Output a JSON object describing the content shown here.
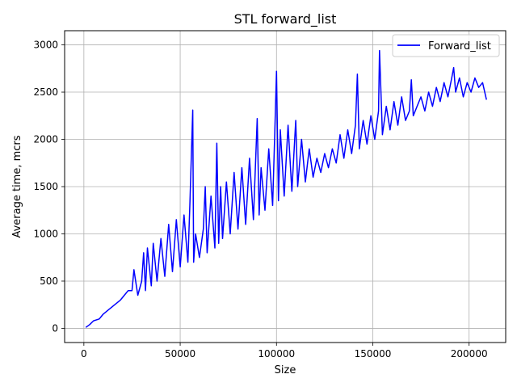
{
  "chart_data": {
    "type": "line",
    "title": "STL forward_list",
    "xlabel": "Size",
    "ylabel": "Average time, mcrs",
    "xlim": [
      -10000,
      219000
    ],
    "ylim": [
      -150,
      3150
    ],
    "xticks": [
      0,
      50000,
      100000,
      150000,
      200000
    ],
    "xtick_labels": [
      "0",
      "50000",
      "100000",
      "150000",
      "200000"
    ],
    "yticks": [
      0,
      500,
      1000,
      1500,
      2000,
      2500,
      3000
    ],
    "ytick_labels": [
      "0",
      "500",
      "1000",
      "1500",
      "2000",
      "2500",
      "3000"
    ],
    "grid": true,
    "legend_position": "top-right",
    "series": [
      {
        "name": "Forward_list",
        "color": "#0000ff",
        "x": [
          1000,
          3000,
          5000,
          8000,
          10000,
          13000,
          16000,
          19000,
          21000,
          23000,
          25000,
          26000,
          28000,
          30000,
          31000,
          32000,
          33000,
          35000,
          36000,
          38000,
          40000,
          42000,
          44000,
          46000,
          48000,
          50000,
          52000,
          54000,
          55000,
          56500,
          57000,
          58000,
          60000,
          62000,
          63000,
          64000,
          66000,
          68000,
          69000,
          70000,
          71000,
          72000,
          74000,
          76000,
          78000,
          80000,
          82000,
          84000,
          86000,
          88000,
          90000,
          91000,
          92000,
          94000,
          96000,
          98000,
          99000,
          100000,
          101000,
          102000,
          104000,
          106000,
          108000,
          110000,
          111000,
          113000,
          115000,
          117000,
          119000,
          121000,
          123000,
          125000,
          127000,
          129000,
          131000,
          133000,
          135000,
          137000,
          139000,
          141000,
          142000,
          143000,
          145000,
          147000,
          149000,
          151000,
          153000,
          153500,
          155000,
          157000,
          159000,
          161000,
          163000,
          165000,
          167000,
          169000,
          170000,
          171000,
          173000,
          175000,
          177000,
          179000,
          181000,
          183000,
          185000,
          187000,
          189000,
          191000,
          192000,
          193000,
          195000,
          197000,
          199000,
          201000,
          203000,
          205000,
          207000,
          209000
        ],
        "y": [
          10,
          40,
          80,
          100,
          150,
          200,
          250,
          300,
          350,
          400,
          400,
          620,
          350,
          500,
          800,
          400,
          850,
          450,
          900,
          500,
          950,
          550,
          1100,
          600,
          1150,
          650,
          1200,
          700,
          1300,
          2310,
          700,
          1000,
          750,
          1050,
          1500,
          800,
          1400,
          850,
          1960,
          900,
          1500,
          950,
          1550,
          1000,
          1650,
          1050,
          1700,
          1100,
          1800,
          1150,
          2220,
          1200,
          1700,
          1250,
          1900,
          1300,
          2000,
          2720,
          1350,
          2100,
          1400,
          2150,
          1450,
          2200,
          1500,
          2000,
          1550,
          1900,
          1600,
          1800,
          1650,
          1850,
          1700,
          1900,
          1750,
          2050,
          1800,
          2100,
          1850,
          2150,
          2690,
          1900,
          2200,
          1950,
          2250,
          2000,
          2300,
          2940,
          2050,
          2350,
          2100,
          2400,
          2150,
          2450,
          2200,
          2300,
          2630,
          2250,
          2350,
          2450,
          2300,
          2500,
          2350,
          2550,
          2400,
          2600,
          2450,
          2650,
          2760,
          2500,
          2650,
          2450,
          2600,
          2500,
          2650,
          2550,
          2600,
          2420
        ]
      }
    ]
  }
}
